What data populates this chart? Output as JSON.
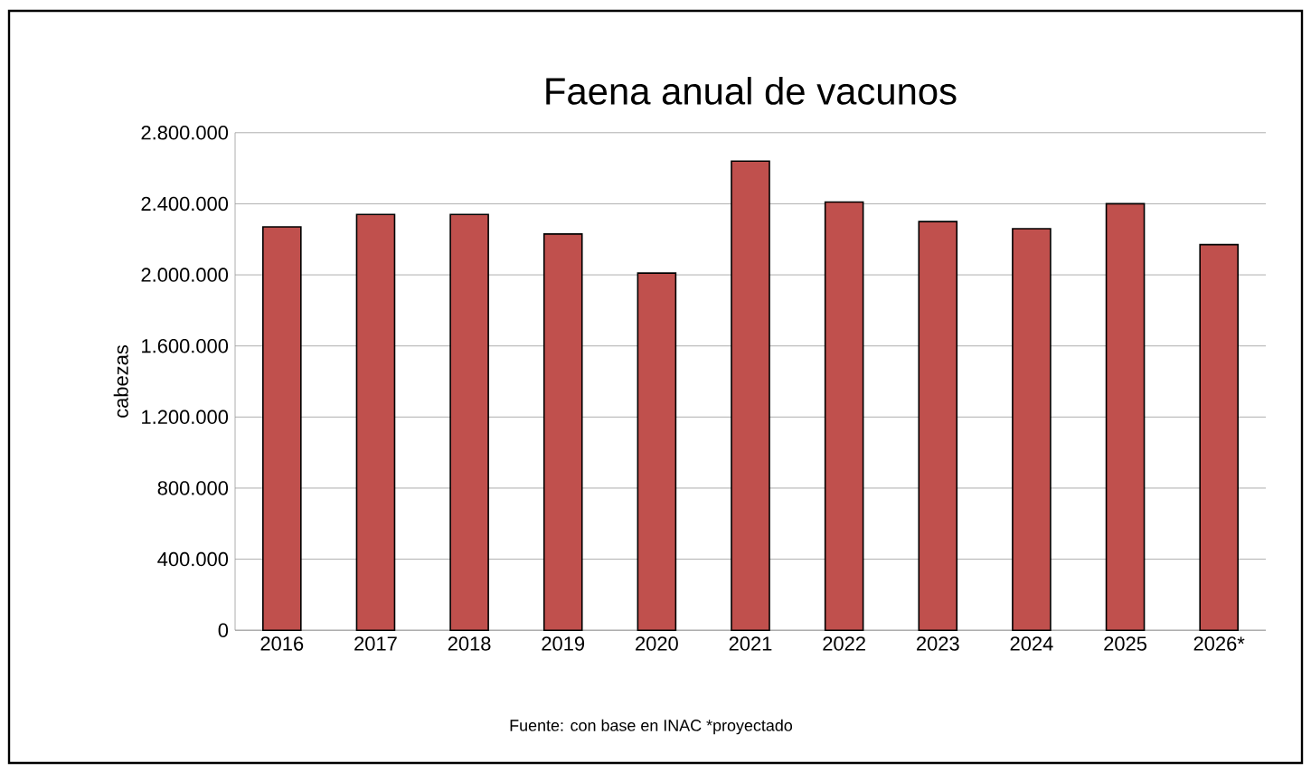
{
  "chart_data": {
    "type": "bar",
    "title": "Faena anual de vacunos",
    "ylabel": "cabezas",
    "categories": [
      "2016",
      "2017",
      "2018",
      "2019",
      "2020",
      "2021",
      "2022",
      "2023",
      "2024",
      "2025",
      "2026*"
    ],
    "values": [
      2270000,
      2340000,
      2340000,
      2230000,
      2010000,
      2640000,
      2410000,
      2300000,
      2260000,
      2400000,
      2170000
    ],
    "color": "#c0504d",
    "ylim": [
      0,
      2800000
    ],
    "yticks": [
      0,
      {
        "value": 400000,
        "label": "400.000"
      },
      {
        "value": 800000,
        "label": "800.000"
      },
      {
        "value": 1200000,
        "label": "1.200.000"
      },
      {
        "value": 1600000,
        "label": "1.600.000"
      },
      {
        "value": 2000000,
        "label": "2.000.000"
      },
      {
        "value": 2400000,
        "label": "2.400.000"
      },
      {
        "value": 2800000,
        "label": "2.800.000"
      }
    ],
    "grid": "y",
    "annotations": [
      "Fuente: con base en INAC *proyectado"
    ]
  }
}
